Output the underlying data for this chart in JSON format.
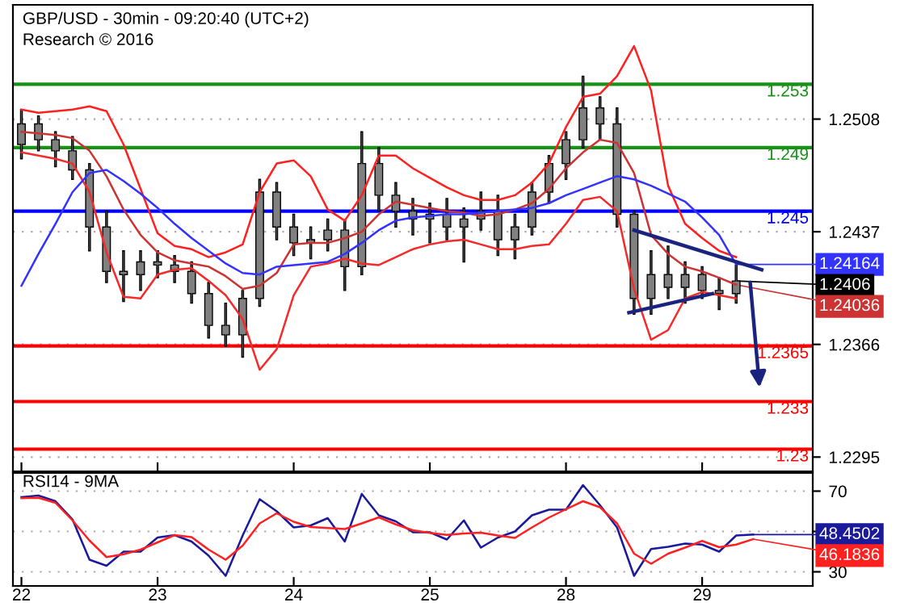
{
  "chart_data": [
    {
      "type": "candlestick",
      "title": "GBP/USD - 30min - 09:20:40 (UTC+2)",
      "subtitle": "Research © 2016",
      "color": "#808080",
      "categories": [
        "22",
        null,
        null,
        null,
        null,
        null,
        null,
        null,
        "23",
        null,
        null,
        null,
        null,
        null,
        null,
        null,
        "24",
        null,
        null,
        null,
        null,
        null,
        null,
        null,
        "25",
        null,
        null,
        null,
        null,
        null,
        null,
        null,
        "28",
        null,
        null,
        null,
        null,
        null,
        null,
        null,
        "29",
        null,
        null,
        null,
        null,
        null,
        null
      ],
      "ohlc": [
        [
          1.2492,
          1.2514,
          1.2483,
          1.2505
        ],
        [
          1.2505,
          1.251,
          1.2488,
          1.2495
        ],
        [
          1.2495,
          1.25,
          1.2478,
          1.2488
        ],
        [
          1.2488,
          1.2497,
          1.247,
          1.2476
        ],
        [
          1.2476,
          1.248,
          1.2425,
          1.244
        ],
        [
          1.244,
          1.245,
          1.2405,
          1.2412
        ],
        [
          1.2412,
          1.2425,
          1.2393,
          1.241
        ],
        [
          1.241,
          1.2425,
          1.24,
          1.2418
        ],
        [
          1.2418,
          1.2425,
          1.2408,
          1.2416
        ],
        [
          1.2416,
          1.2422,
          1.2405,
          1.2412
        ],
        [
          1.2412,
          1.2418,
          1.2392,
          1.2398
        ],
        [
          1.2398,
          1.2405,
          1.237,
          1.2378
        ],
        [
          1.2378,
          1.2392,
          1.2365,
          1.2372
        ],
        [
          1.2372,
          1.24,
          1.2358,
          1.2395
        ],
        [
          1.2395,
          1.247,
          1.239,
          1.2462
        ],
        [
          1.2462,
          1.2468,
          1.2432,
          1.244
        ],
        [
          1.244,
          1.2448,
          1.2422,
          1.243
        ],
        [
          1.243,
          1.244,
          1.242,
          1.2432
        ],
        [
          1.2432,
          1.2445,
          1.2425,
          1.2438
        ],
        [
          1.2438,
          1.2444,
          1.24,
          1.2415
        ],
        [
          1.2415,
          1.25,
          1.241,
          1.248
        ],
        [
          1.248,
          1.249,
          1.245,
          1.246
        ],
        [
          1.246,
          1.2468,
          1.244,
          1.245
        ],
        [
          1.245,
          1.2458,
          1.2435,
          1.2445
        ],
        [
          1.2445,
          1.2455,
          1.243,
          1.2448
        ],
        [
          1.2448,
          1.2458,
          1.2432,
          1.244
        ],
        [
          1.244,
          1.2452,
          1.2418,
          1.2445
        ],
        [
          1.2445,
          1.2462,
          1.2438,
          1.245
        ],
        [
          1.245,
          1.246,
          1.2422,
          1.2432
        ],
        [
          1.2432,
          1.2448,
          1.242,
          1.244
        ],
        [
          1.244,
          1.2468,
          1.2435,
          1.2462
        ],
        [
          1.2462,
          1.2485,
          1.2455,
          1.248
        ],
        [
          1.248,
          1.25,
          1.247,
          1.2495
        ],
        [
          1.2495,
          1.2535,
          1.249,
          1.2515
        ],
        [
          1.2515,
          1.2522,
          1.2495,
          1.2505
        ],
        [
          1.2505,
          1.2515,
          1.244,
          1.2448
        ],
        [
          1.2448,
          1.245,
          1.2385,
          1.2395
        ],
        [
          1.2395,
          1.2425,
          1.2385,
          1.241
        ],
        [
          1.241,
          1.2428,
          1.2395,
          1.2402
        ],
        [
          1.2402,
          1.2418,
          1.2392,
          1.241
        ],
        [
          1.241,
          1.2415,
          1.2395,
          1.24
        ],
        [
          1.24,
          1.2408,
          1.2388,
          1.2398
        ],
        [
          1.2398,
          1.2416,
          1.2392,
          1.2406
        ],
        null,
        null,
        null,
        null
      ],
      "value_labels": [
        null,
        null,
        null,
        null,
        null,
        null,
        null,
        null,
        null,
        null,
        null,
        null,
        null,
        null,
        null,
        null,
        null,
        null,
        null,
        null,
        null,
        null,
        null,
        null,
        null,
        null,
        null,
        null,
        null,
        null,
        null,
        null,
        null,
        null,
        null,
        null,
        null,
        null,
        null,
        null,
        null,
        null,
        "1.2406",
        null,
        null,
        null,
        null
      ],
      "series": [
        {
          "type": "line",
          "color": "#ff2020",
          "values": [
            1.2514,
            1.2512,
            1.2513,
            1.2514,
            1.2516,
            1.2513,
            1.2492,
            1.2464,
            1.2436,
            1.2428,
            1.2426,
            1.2421,
            1.2424,
            1.2429,
            1.2462,
            1.248,
            1.2482,
            1.2472,
            1.2451,
            1.2444,
            1.246,
            1.2485,
            1.2485,
            1.2477,
            1.2471,
            1.2465,
            1.246,
            1.2457,
            1.2457,
            1.246,
            1.2468,
            1.248,
            1.2503,
            1.2522,
            1.2524,
            1.2535,
            1.2554,
            1.2526,
            1.2466,
            1.2442,
            1.2433,
            1.2425,
            1.2421,
            null,
            null,
            null,
            null
          ]
        },
        {
          "type": "line",
          "color": "#f52a2a",
          "values": [
            1.2487,
            1.2485,
            1.2483,
            1.248,
            1.2462,
            1.2424,
            1.2396,
            1.2395,
            1.241,
            1.2413,
            1.2414,
            1.2406,
            1.2397,
            1.2382,
            1.235,
            1.2363,
            1.2397,
            1.2415,
            1.2417,
            1.242,
            1.2417,
            1.2416,
            1.2421,
            1.2426,
            1.2429,
            1.2431,
            1.2432,
            1.2429,
            1.2426,
            1.2426,
            1.2428,
            1.2429,
            1.2442,
            1.2457,
            1.2459,
            1.245,
            1.2401,
            1.2369,
            1.2375,
            1.2395,
            1.2399,
            1.2397,
            1.2395,
            null,
            null,
            null,
            null
          ]
        },
        {
          "type": "line",
          "color": "#cc3333",
          "values": [
            1.25,
            1.2499,
            1.2498,
            1.2496,
            1.2488,
            1.2472,
            1.2451,
            1.2435,
            1.2424,
            1.2419,
            1.2417,
            1.2415,
            1.2409,
            1.2401,
            1.2403,
            1.2411,
            1.2429,
            1.243,
            1.243,
            1.2433,
            1.2437,
            1.2448,
            1.2456,
            1.2454,
            1.2452,
            1.245,
            1.2449,
            1.2447,
            1.2448,
            1.2451,
            1.2455,
            1.2464,
            1.2477,
            1.2487,
            1.2495,
            1.2493,
            1.2474,
            1.2435,
            1.2423,
            1.2415,
            1.2412,
            1.2408,
            1.24036,
            null,
            null,
            null,
            null
          ],
          "value_labels": [
            null,
            null,
            null,
            null,
            null,
            null,
            null,
            null,
            null,
            null,
            null,
            null,
            null,
            null,
            null,
            null,
            null,
            null,
            null,
            null,
            null,
            null,
            null,
            null,
            null,
            null,
            null,
            null,
            null,
            null,
            null,
            null,
            null,
            null,
            null,
            null,
            null,
            null,
            null,
            null,
            null,
            null,
            "1.24036",
            null,
            null,
            null,
            null
          ]
        },
        {
          "type": "line",
          "color": "#3333ff",
          "values": [
            1.2403,
            1.2423,
            1.2442,
            1.2462,
            1.2474,
            1.2476,
            1.2469,
            1.2461,
            1.2452,
            1.2442,
            1.2433,
            1.2425,
            1.2417,
            1.2411,
            1.241,
            1.2415,
            1.2416,
            1.2417,
            1.2418,
            1.2423,
            1.243,
            1.2438,
            1.2444,
            1.2446,
            1.2447,
            1.2448,
            1.2448,
            1.2449,
            1.245,
            1.2451,
            1.2452,
            1.2455,
            1.246,
            1.2464,
            1.2468,
            1.2472,
            1.247,
            1.2466,
            1.2461,
            1.2456,
            1.2446,
            1.2435,
            1.24164,
            null,
            null,
            null,
            null
          ],
          "value_labels": [
            null,
            null,
            null,
            null,
            null,
            null,
            null,
            null,
            null,
            null,
            null,
            null,
            null,
            null,
            null,
            null,
            null,
            null,
            null,
            null,
            null,
            null,
            null,
            null,
            null,
            null,
            null,
            null,
            null,
            null,
            null,
            null,
            null,
            null,
            null,
            null,
            null,
            null,
            null,
            null,
            null,
            null,
            "1.24164",
            null,
            null,
            null,
            null
          ]
        }
      ],
      "ref_lines": [
        {
          "axis": "y",
          "value": 1.253,
          "label": "1.253",
          "color": "#169216"
        },
        {
          "axis": "y",
          "value": 1.249,
          "label": "1.249",
          "color": "#169216"
        },
        {
          "axis": "y",
          "value": 1.245,
          "label": "1.245",
          "color": "#0000ff"
        },
        {
          "axis": "y",
          "value": 1.2365,
          "label": "1.2365",
          "color": "#ff0000"
        },
        {
          "axis": "y",
          "value": 1.233,
          "label": "1.233",
          "color": "#ff0000"
        },
        {
          "axis": "y",
          "value": 1.23,
          "label": "1.23",
          "color": "#ff0000"
        }
      ],
      "ylim": [
        1.2286,
        1.258
      ],
      "yticks": [
        1.2295,
        1.2366,
        1.2437,
        1.2508
      ],
      "grid": "y",
      "tick_labels": "y"
    },
    {
      "type": "line",
      "title": "RSI14 - 9MA",
      "categories": [
        "22",
        null,
        null,
        null,
        null,
        null,
        null,
        null,
        "23",
        null,
        null,
        null,
        null,
        null,
        null,
        null,
        "24",
        null,
        null,
        null,
        null,
        null,
        null,
        null,
        "25",
        null,
        null,
        null,
        null,
        null,
        null,
        null,
        "28",
        null,
        null,
        null,
        null,
        null,
        null,
        null,
        "29",
        null,
        null,
        null,
        null,
        null,
        null
      ],
      "series": [
        {
          "color": "#1a1a9a",
          "values": [
            67,
            67.8,
            65,
            56,
            36,
            33,
            40,
            40,
            47,
            48.2,
            45,
            38,
            28,
            48,
            66,
            60,
            52,
            53,
            56.6,
            45,
            68.6,
            58,
            55,
            49.6,
            49.6,
            46,
            55.5,
            42,
            47,
            50,
            58,
            60.8,
            60.8,
            73,
            63,
            52,
            28,
            41.3,
            42.4,
            44,
            43.5,
            40,
            48,
            48.4502,
            null,
            null,
            null
          ],
          "value_labels": [
            null,
            null,
            null,
            null,
            null,
            null,
            null,
            null,
            null,
            null,
            null,
            null,
            null,
            null,
            null,
            null,
            null,
            null,
            null,
            null,
            null,
            null,
            null,
            null,
            null,
            null,
            null,
            null,
            null,
            null,
            null,
            null,
            null,
            null,
            null,
            null,
            null,
            null,
            null,
            null,
            null,
            null,
            null,
            "48.4502",
            null,
            null,
            null
          ]
        },
        {
          "color": "#ff2020",
          "values": [
            66.5,
            66.7,
            64.2,
            55.5,
            45.5,
            37.3,
            38.7,
            41,
            44.6,
            48.2,
            47.2,
            41,
            36,
            43,
            54,
            59,
            54.8,
            52.2,
            51.7,
            51.2,
            54,
            57,
            53.5,
            50.6,
            49.3,
            48.3,
            49,
            49.4,
            48,
            46.8,
            52,
            56.9,
            61,
            65,
            62,
            54,
            39,
            34,
            39,
            42,
            45.3,
            42.2,
            43.5,
            46.1836,
            null,
            null,
            null
          ],
          "value_labels": [
            null,
            null,
            null,
            null,
            null,
            null,
            null,
            null,
            null,
            null,
            null,
            null,
            null,
            null,
            null,
            null,
            null,
            null,
            null,
            null,
            null,
            null,
            null,
            null,
            null,
            null,
            null,
            null,
            null,
            null,
            null,
            null,
            null,
            null,
            null,
            null,
            null,
            null,
            null,
            null,
            null,
            null,
            null,
            "46.1836",
            null,
            null,
            null
          ]
        }
      ],
      "ylim": [
        23,
        79
      ],
      "yticks": [
        30,
        {
          "value": 50,
          "label": null
        },
        70
      ],
      "grid": "y"
    }
  ]
}
